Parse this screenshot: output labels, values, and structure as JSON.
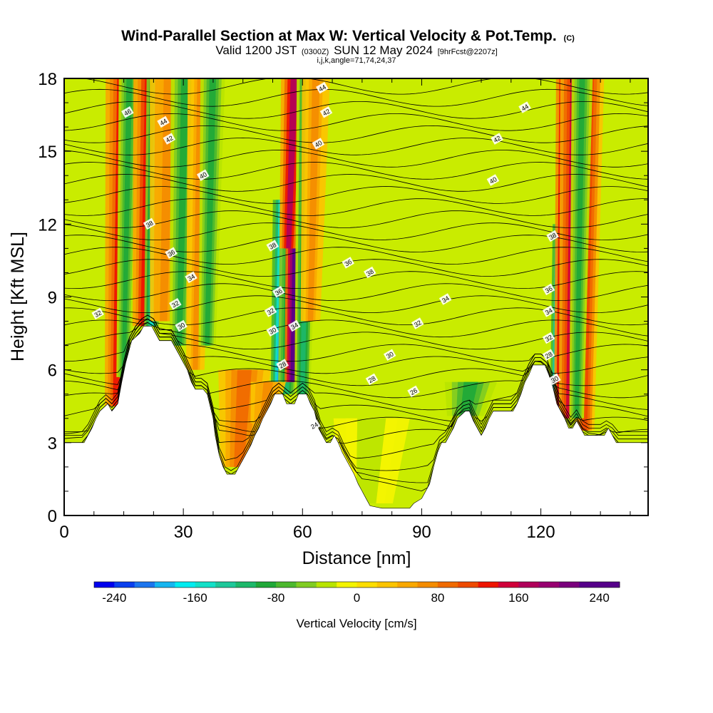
{
  "chart_data": {
    "type": "heatmap",
    "title": "Wind-Parallel Section at Max W: Vertical Velocity & Pot.Temp.",
    "title_mark": "(C)",
    "subtitle_main_a": "Valid 1200 JST",
    "subtitle_small_a": "(0300Z)",
    "subtitle_main_b": "SUN 12 May 2024",
    "subtitle_small_b": "[9hrFcst@2207z]",
    "subtitle2": "i,j,k,angle=71,74,24,37",
    "xlabel": "Distance [nm]",
    "ylabel": "Height [Kft MSL]",
    "xlim": [
      0,
      147
    ],
    "ylim": [
      0,
      18
    ],
    "x_ticks": [
      "0",
      "30",
      "60",
      "90",
      "120"
    ],
    "x_tick_values": [
      0,
      30,
      60,
      90,
      120
    ],
    "y_ticks": [
      "0",
      "3",
      "6",
      "9",
      "12",
      "15",
      "18"
    ],
    "y_tick_values": [
      0,
      3,
      6,
      9,
      12,
      15,
      18
    ],
    "colorbar": {
      "label": "Vertical Velocity [cm/s]",
      "range": [
        -260,
        260
      ],
      "step": 20,
      "tick_labels": [
        "-240",
        "-160",
        "-80",
        "0",
        "80",
        "160",
        "240"
      ],
      "tick_values": [
        -240,
        -160,
        -80,
        0,
        80,
        160,
        240
      ],
      "colors": [
        "#0000ee",
        "#0a3fee",
        "#1c75ee",
        "#16b5f0",
        "#00ecf0",
        "#12e0c8",
        "#1ec89a",
        "#1db86a",
        "#20a838",
        "#4cb82e",
        "#80cc22",
        "#b8e400",
        "#f4f400",
        "#fdde00",
        "#fbc400",
        "#f9a800",
        "#f48c00",
        "#f06a00",
        "#ee4a00",
        "#ee1400",
        "#d0003a",
        "#b0005a",
        "#980070",
        "#7a007c",
        "#56008a"
      ]
    },
    "velocity_features": [
      {
        "x": 13,
        "y_top": 18,
        "y_bottom": 4.5,
        "w": 120,
        "width": 1.8
      },
      {
        "x": 15,
        "y_top": 18,
        "y_bottom": 5.5,
        "w": -95,
        "width": 1.2
      },
      {
        "x": 20,
        "y_top": 18,
        "y_bottom": 7.8,
        "w": 130,
        "width": 1.8
      },
      {
        "x": 22,
        "y_top": 18,
        "y_bottom": 7.8,
        "w": -150,
        "width": 1.2
      },
      {
        "x": 25,
        "y_top": 18,
        "y_bottom": 8,
        "w": 70,
        "width": 2.2
      },
      {
        "x": 29,
        "y_top": 18,
        "y_bottom": 7,
        "w": -85,
        "width": 1.6
      },
      {
        "x": 33,
        "y_top": 18,
        "y_bottom": 6,
        "w": 65,
        "width": 1.5
      },
      {
        "x": 36,
        "y_top": 18,
        "y_bottom": 7,
        "w": -90,
        "width": 1.4
      },
      {
        "x": 54,
        "y_top": 13,
        "y_bottom": 5,
        "w": -200,
        "width": 1.3
      },
      {
        "x": 56,
        "y_top": 13,
        "y_bottom": 5,
        "w": -120,
        "width": 1.4
      },
      {
        "x": 57.5,
        "y_top": 18,
        "y_bottom": 5.5,
        "w": 245,
        "width": 1.3
      },
      {
        "x": 56.5,
        "y_top": 18,
        "y_bottom": 11,
        "w": 160,
        "width": 1.5
      },
      {
        "x": 60,
        "y_top": 18,
        "y_bottom": 5,
        "w": -110,
        "width": 1.3
      },
      {
        "x": 62,
        "y_top": 18,
        "y_bottom": 8,
        "w": 60,
        "width": 1.6
      },
      {
        "x": 124,
        "y_top": 12,
        "y_bottom": 4.5,
        "w": -220,
        "width": 1.1
      },
      {
        "x": 125.5,
        "y_top": 18,
        "y_bottom": 4,
        "w": 200,
        "width": 1.4
      },
      {
        "x": 127,
        "y_top": 18,
        "y_bottom": 4,
        "w": 140,
        "width": 1.6
      },
      {
        "x": 131,
        "y_top": 18,
        "y_bottom": 3.5,
        "w": 105,
        "width": 1.6
      },
      {
        "x": 129,
        "y_top": 18,
        "y_bottom": 4,
        "w": -90,
        "width": 1.2
      },
      {
        "x": 101,
        "y_top": 5.5,
        "y_bottom": 4,
        "w": -90,
        "width": 3
      },
      {
        "x": 44,
        "y_top": 6,
        "y_bottom": 2,
        "w": 80,
        "width": 3
      },
      {
        "x": 50,
        "y_top": 5.5,
        "y_bottom": 3,
        "w": 70,
        "width": 2
      },
      {
        "x": 76,
        "y_top": 4,
        "y_bottom": 0.5,
        "w": -25,
        "width": 6
      }
    ],
    "terrain_kft": [
      [
        0,
        3
      ],
      [
        5,
        3
      ],
      [
        6,
        3.3
      ],
      [
        7,
        3.6
      ],
      [
        8,
        4.0
      ],
      [
        9,
        4.3
      ],
      [
        11,
        4.6
      ],
      [
        12,
        4.3
      ],
      [
        13.5,
        4.6
      ],
      [
        14.5,
        5.5
      ],
      [
        15.5,
        6.3
      ],
      [
        17,
        7.2
      ],
      [
        19,
        7.5
      ],
      [
        20,
        7.8
      ],
      [
        22,
        7.8
      ],
      [
        24,
        7.2
      ],
      [
        27,
        7.2
      ],
      [
        29,
        6.6
      ],
      [
        30,
        6.3
      ],
      [
        31,
        6.0
      ],
      [
        32,
        5.5
      ],
      [
        33,
        5.2
      ],
      [
        35,
        5.2
      ],
      [
        36,
        5.0
      ],
      [
        37.5,
        4.0
      ],
      [
        38,
        3.3
      ],
      [
        39,
        2.5
      ],
      [
        40,
        2.0
      ],
      [
        41,
        1.7
      ],
      [
        43,
        1.7
      ],
      [
        44,
        2.0
      ],
      [
        45,
        2.3
      ],
      [
        46,
        2.6
      ],
      [
        47,
        2.9
      ],
      [
        48,
        3.3
      ],
      [
        49,
        3.6
      ],
      [
        50,
        4.0
      ],
      [
        51,
        4.3
      ],
      [
        52,
        4.6
      ],
      [
        53,
        5.0
      ],
      [
        55,
        5.0
      ],
      [
        56,
        4.6
      ],
      [
        58,
        4.6
      ],
      [
        59,
        5.0
      ],
      [
        61,
        5.0
      ],
      [
        62,
        4.6
      ],
      [
        63,
        4.3
      ],
      [
        64,
        3.6
      ],
      [
        65,
        3.3
      ],
      [
        66,
        3.0
      ],
      [
        67,
        3.0
      ],
      [
        68,
        3.3
      ],
      [
        69,
        3.0
      ],
      [
        70,
        2.6
      ],
      [
        71,
        2.3
      ],
      [
        72,
        2.0
      ],
      [
        73,
        1.7
      ],
      [
        74,
        1.3
      ],
      [
        75,
        1.0
      ],
      [
        76,
        0.7
      ],
      [
        77,
        0.4
      ],
      [
        80,
        0.3
      ],
      [
        87,
        0.3
      ],
      [
        88,
        0.5
      ],
      [
        90,
        0.7
      ],
      [
        92,
        1.3
      ],
      [
        93,
        2.0
      ],
      [
        94,
        2.6
      ],
      [
        95,
        3.0
      ],
      [
        96,
        3.0
      ],
      [
        97,
        3.3
      ],
      [
        98,
        3.6
      ],
      [
        99,
        4.0
      ],
      [
        101,
        4.3
      ],
      [
        102,
        4.3
      ],
      [
        103,
        3.9
      ],
      [
        104,
        3.6
      ],
      [
        105,
        3.3
      ],
      [
        106,
        3.6
      ],
      [
        107,
        4.0
      ],
      [
        108,
        4.3
      ],
      [
        113,
        4.3
      ],
      [
        114,
        4.6
      ],
      [
        115,
        5.0
      ],
      [
        116,
        5.5
      ],
      [
        117,
        5.8
      ],
      [
        118,
        6.2
      ],
      [
        121,
        6.2
      ],
      [
        122,
        5.8
      ],
      [
        123,
        5.3
      ],
      [
        124,
        4.6
      ],
      [
        126,
        4.0
      ],
      [
        127,
        3.6
      ],
      [
        128,
        3.6
      ],
      [
        129,
        3.9
      ],
      [
        130,
        3.6
      ],
      [
        131,
        3.3
      ],
      [
        136,
        3.3
      ],
      [
        137,
        3.6
      ],
      [
        138,
        3.3
      ],
      [
        139,
        3.0
      ],
      [
        147,
        3.0
      ]
    ],
    "theta_contours_K": [
      24,
      26,
      28,
      30,
      32,
      34,
      36,
      38,
      40,
      42,
      44,
      46
    ],
    "contour_labels": [
      {
        "text": "46",
        "x": 16,
        "y": 16.6
      },
      {
        "text": "44",
        "x": 25,
        "y": 16.2
      },
      {
        "text": "42",
        "x": 26.5,
        "y": 15.5
      },
      {
        "text": "40",
        "x": 35,
        "y": 14.0
      },
      {
        "text": "38",
        "x": 21.5,
        "y": 12.0
      },
      {
        "text": "36",
        "x": 27,
        "y": 10.8
      },
      {
        "text": "34",
        "x": 32,
        "y": 9.8
      },
      {
        "text": "32",
        "x": 28,
        "y": 8.7
      },
      {
        "text": "30",
        "x": 29.5,
        "y": 7.8
      },
      {
        "text": "32",
        "x": 8.5,
        "y": 8.3
      },
      {
        "text": "44",
        "x": 65,
        "y": 17.6
      },
      {
        "text": "42",
        "x": 66,
        "y": 16.6
      },
      {
        "text": "40",
        "x": 64,
        "y": 15.3
      },
      {
        "text": "44",
        "x": 116,
        "y": 16.8
      },
      {
        "text": "42",
        "x": 109,
        "y": 15.5
      },
      {
        "text": "40",
        "x": 108,
        "y": 13.8
      },
      {
        "text": "38",
        "x": 52.5,
        "y": 11.1
      },
      {
        "text": "38",
        "x": 77,
        "y": 10.0
      },
      {
        "text": "38",
        "x": 123,
        "y": 11.5
      },
      {
        "text": "36",
        "x": 71.5,
        "y": 10.4
      },
      {
        "text": "34",
        "x": 96,
        "y": 8.9
      },
      {
        "text": "32",
        "x": 89,
        "y": 7.9
      },
      {
        "text": "30",
        "x": 82,
        "y": 6.6
      },
      {
        "text": "28",
        "x": 77.5,
        "y": 5.6
      },
      {
        "text": "26",
        "x": 88,
        "y": 5.1
      },
      {
        "text": "24",
        "x": 63,
        "y": 3.7
      },
      {
        "text": "36",
        "x": 54,
        "y": 9.2
      },
      {
        "text": "32",
        "x": 52,
        "y": 8.4
      },
      {
        "text": "30",
        "x": 52.5,
        "y": 7.6
      },
      {
        "text": "34",
        "x": 58,
        "y": 7.8
      },
      {
        "text": "28",
        "x": 55,
        "y": 6.2
      },
      {
        "text": "36",
        "x": 122,
        "y": 9.3
      },
      {
        "text": "34",
        "x": 122,
        "y": 8.4
      },
      {
        "text": "32",
        "x": 122,
        "y": 7.3
      },
      {
        "text": "28",
        "x": 122,
        "y": 6.6
      },
      {
        "text": "30",
        "x": 123.5,
        "y": 5.6
      }
    ]
  }
}
